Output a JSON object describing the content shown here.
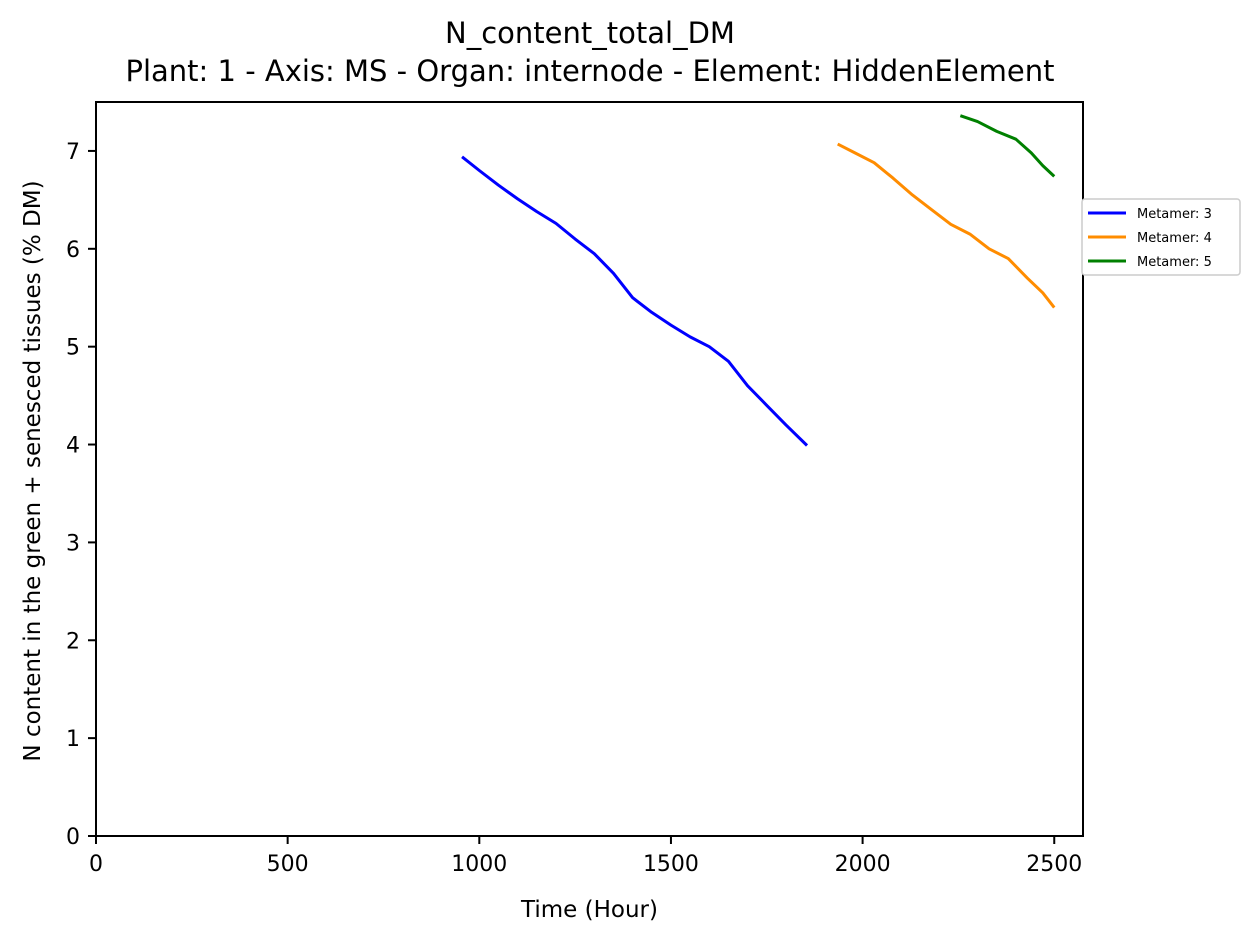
{
  "chart_data": {
    "type": "line",
    "title": "N_content_total_DM",
    "subtitle": "Plant: 1 - Axis: MS - Organ: internode - Element: HiddenElement",
    "xlabel": "Time (Hour)",
    "ylabel": "N content in the green + senesced tissues (% DM)",
    "xlim": [
      0,
      2575
    ],
    "ylim": [
      0,
      7.5
    ],
    "xticks": [
      0,
      500,
      1000,
      1500,
      2000,
      2500
    ],
    "yticks": [
      0,
      1,
      2,
      3,
      4,
      5,
      6,
      7
    ],
    "grid": false,
    "legend_position": "outside-right",
    "series": [
      {
        "name": "Metamer: 3",
        "color": "#0000ff",
        "x": [
          955,
          1000,
          1050,
          1100,
          1150,
          1200,
          1250,
          1300,
          1350,
          1400,
          1450,
          1500,
          1550,
          1600,
          1650,
          1700,
          1750,
          1800,
          1855
        ],
        "y": [
          6.94,
          6.8,
          6.65,
          6.51,
          6.38,
          6.26,
          6.1,
          5.95,
          5.75,
          5.5,
          5.35,
          5.22,
          5.1,
          5.0,
          4.85,
          4.6,
          4.4,
          4.2,
          3.99
        ]
      },
      {
        "name": "Metamer: 4",
        "color": "#ff8c00",
        "x": [
          1935,
          1980,
          2030,
          2080,
          2130,
          2180,
          2230,
          2280,
          2330,
          2380,
          2430,
          2470,
          2500
        ],
        "y": [
          7.07,
          6.98,
          6.88,
          6.72,
          6.55,
          6.4,
          6.25,
          6.15,
          6.0,
          5.9,
          5.7,
          5.55,
          5.4
        ]
      },
      {
        "name": "Metamer: 5",
        "color": "#008000",
        "x": [
          2255,
          2300,
          2350,
          2400,
          2440,
          2470,
          2500
        ],
        "y": [
          7.36,
          7.3,
          7.2,
          7.12,
          6.98,
          6.85,
          6.74
        ]
      }
    ]
  }
}
